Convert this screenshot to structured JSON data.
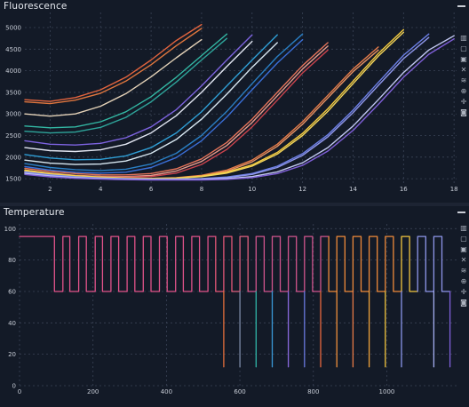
{
  "panels": {
    "fluorescence": {
      "title": "Fluorescence"
    },
    "temperature": {
      "title": "Temperature"
    }
  },
  "toolbar_icons": [
    "bar-chart-icon",
    "square-icon",
    "filled-square-icon",
    "crosshair-icon",
    "layers-icon",
    "zoom-icon",
    "pan-icon",
    "camera-icon"
  ],
  "chart_data": [
    {
      "type": "line",
      "title": "Fluorescence",
      "xlabel": "",
      "ylabel": "",
      "xlim": [
        1.0,
        18.1
      ],
      "ylim": [
        1400,
        5350
      ],
      "x_ticks": [
        2,
        4,
        6,
        8,
        10,
        12,
        14,
        16,
        18
      ],
      "y_ticks": [
        1500,
        2000,
        2500,
        3000,
        3500,
        4000,
        4500,
        5000
      ],
      "grid": true,
      "series": [
        {
          "color": "#e2643e",
          "x": [
            1,
            2,
            3,
            4,
            5,
            6,
            7,
            8
          ],
          "y": [
            3330,
            3290,
            3380,
            3560,
            3850,
            4250,
            4700,
            5070
          ]
        },
        {
          "color": "#e0763e",
          "x": [
            1,
            2,
            3,
            4,
            5,
            6,
            7,
            8
          ],
          "y": [
            3280,
            3240,
            3320,
            3480,
            3760,
            4140,
            4580,
            4980
          ]
        },
        {
          "color": "#e4d2b8",
          "x": [
            1,
            2,
            3,
            4,
            5,
            6,
            7,
            8
          ],
          "y": [
            3000,
            2950,
            3000,
            3180,
            3470,
            3860,
            4300,
            4720
          ]
        },
        {
          "color": "#33b8a4",
          "x": [
            1,
            2,
            3,
            4,
            5,
            6,
            7,
            8,
            9
          ],
          "y": [
            2720,
            2680,
            2700,
            2820,
            3050,
            3400,
            3850,
            4350,
            4850
          ]
        },
        {
          "color": "#2ea49a",
          "x": [
            1,
            2,
            3,
            4,
            5,
            6,
            7,
            8,
            9
          ],
          "y": [
            2600,
            2560,
            2580,
            2690,
            2920,
            3280,
            3740,
            4250,
            4750
          ]
        },
        {
          "color": "#7d63e0",
          "x": [
            1,
            2,
            3,
            4,
            5,
            6,
            7,
            8,
            9,
            10
          ],
          "y": [
            2380,
            2300,
            2280,
            2320,
            2450,
            2700,
            3100,
            3650,
            4250,
            4830
          ]
        },
        {
          "color": "#e2e6f2",
          "x": [
            1,
            2,
            3,
            4,
            5,
            6,
            7,
            8,
            9,
            10
          ],
          "y": [
            2220,
            2150,
            2130,
            2170,
            2300,
            2560,
            2960,
            3500,
            4100,
            4680
          ]
        },
        {
          "color": "#2f9fd6",
          "x": [
            1,
            2,
            3,
            4,
            5,
            6,
            7,
            8,
            9,
            10,
            11
          ],
          "y": [
            2060,
            1980,
            1940,
            1950,
            2030,
            2220,
            2560,
            3050,
            3650,
            4250,
            4830
          ]
        },
        {
          "color": "#d8e8f2",
          "x": [
            1,
            2,
            3,
            4,
            5,
            6,
            7,
            8,
            9,
            10,
            11
          ],
          "y": [
            1930,
            1860,
            1830,
            1840,
            1910,
            2090,
            2410,
            2880,
            3460,
            4080,
            4650
          ]
        },
        {
          "color": "#2a7fc4",
          "x": [
            1,
            2,
            3,
            4,
            5,
            6,
            7,
            8,
            9,
            10,
            11,
            12
          ],
          "y": [
            1850,
            1760,
            1710,
            1690,
            1720,
            1840,
            2090,
            2500,
            3060,
            3700,
            4330,
            4850
          ]
        },
        {
          "color": "#3a6fd8",
          "x": [
            1,
            2,
            3,
            4,
            5,
            6,
            7,
            8,
            9,
            10,
            11,
            12
          ],
          "y": [
            1780,
            1700,
            1650,
            1630,
            1650,
            1760,
            1990,
            2380,
            2930,
            3560,
            4180,
            4720
          ]
        },
        {
          "color": "#e5745a",
          "x": [
            1,
            2,
            3,
            4,
            5,
            6,
            7,
            8,
            9,
            10,
            11,
            12,
            13
          ],
          "y": [
            1740,
            1670,
            1620,
            1590,
            1590,
            1620,
            1730,
            1960,
            2340,
            2880,
            3500,
            4120,
            4650
          ]
        },
        {
          "color": "#e89a8a",
          "x": [
            1,
            2,
            3,
            4,
            5,
            6,
            7,
            8,
            9,
            10,
            11,
            12,
            13
          ],
          "y": [
            1700,
            1630,
            1580,
            1555,
            1550,
            1575,
            1680,
            1900,
            2270,
            2800,
            3420,
            4040,
            4570
          ]
        },
        {
          "color": "#c9434c",
          "x": [
            1,
            2,
            3,
            4,
            5,
            6,
            7,
            8,
            9,
            10,
            11,
            12,
            13
          ],
          "y": [
            1670,
            1610,
            1570,
            1545,
            1535,
            1550,
            1630,
            1830,
            2180,
            2700,
            3320,
            3950,
            4480
          ]
        },
        {
          "color": "#e67c4a",
          "x": [
            1,
            2,
            3,
            4,
            5,
            6,
            7,
            8,
            9,
            10,
            11,
            12,
            13,
            14,
            15
          ],
          "y": [
            1660,
            1600,
            1560,
            1530,
            1515,
            1510,
            1525,
            1580,
            1700,
            1930,
            2300,
            2820,
            3430,
            4040,
            4550
          ]
        },
        {
          "color": "#e89262",
          "x": [
            1,
            2,
            3,
            4,
            5,
            6,
            7,
            8,
            9,
            10,
            11,
            12,
            13,
            14,
            15
          ],
          "y": [
            1640,
            1585,
            1545,
            1520,
            1505,
            1500,
            1512,
            1560,
            1670,
            1890,
            2250,
            2760,
            3370,
            3980,
            4480
          ]
        },
        {
          "color": "#f5cc3e",
          "x": [
            1,
            2,
            3,
            4,
            5,
            6,
            7,
            8,
            9,
            10,
            11,
            12,
            13,
            14,
            15,
            16
          ],
          "y": [
            1700,
            1620,
            1570,
            1540,
            1520,
            1510,
            1520,
            1560,
            1650,
            1820,
            2110,
            2550,
            3120,
            3760,
            4400,
            4950
          ]
        },
        {
          "color": "#f3d55a",
          "x": [
            1,
            2,
            3,
            4,
            5,
            6,
            7,
            8,
            9,
            10,
            11,
            12,
            13,
            14,
            15,
            16
          ],
          "y": [
            1680,
            1605,
            1560,
            1530,
            1512,
            1505,
            1512,
            1548,
            1630,
            1790,
            2070,
            2500,
            3060,
            3700,
            4340,
            4890
          ]
        },
        {
          "color": "#6c7fe6",
          "x": [
            1,
            2,
            3,
            4,
            5,
            6,
            7,
            8,
            9,
            10,
            11,
            12,
            13,
            14,
            15,
            16,
            17
          ],
          "y": [
            1660,
            1590,
            1545,
            1518,
            1502,
            1495,
            1495,
            1505,
            1540,
            1620,
            1790,
            2080,
            2520,
            3090,
            3730,
            4360,
            4850
          ]
        },
        {
          "color": "#8e96ea",
          "x": [
            1,
            2,
            3,
            4,
            5,
            6,
            7,
            8,
            9,
            10,
            11,
            12,
            13,
            14,
            15,
            16,
            17
          ],
          "y": [
            1640,
            1575,
            1535,
            1510,
            1495,
            1488,
            1488,
            1496,
            1525,
            1600,
            1760,
            2040,
            2470,
            3030,
            3660,
            4280,
            4770
          ]
        },
        {
          "color": "#c2c8f2",
          "x": [
            1,
            2,
            3,
            4,
            5,
            6,
            7,
            8,
            9,
            10,
            11,
            12,
            13,
            14,
            15,
            16,
            17,
            18
          ],
          "y": [
            1620,
            1560,
            1522,
            1500,
            1486,
            1480,
            1478,
            1482,
            1500,
            1550,
            1660,
            1870,
            2220,
            2720,
            3330,
            3960,
            4480,
            4810
          ]
        },
        {
          "color": "#7f5fd8",
          "x": [
            1,
            2,
            3,
            4,
            5,
            6,
            7,
            8,
            9,
            10,
            11,
            12,
            13,
            14,
            15,
            16,
            17,
            18
          ],
          "y": [
            1600,
            1545,
            1510,
            1490,
            1478,
            1472,
            1470,
            1472,
            1485,
            1525,
            1620,
            1810,
            2140,
            2620,
            3220,
            3850,
            4380,
            4740
          ]
        }
      ]
    },
    {
      "type": "line",
      "title": "Temperature",
      "xlabel": "",
      "ylabel": "",
      "xlim": [
        0,
        1190
      ],
      "ylim": [
        0,
        103
      ],
      "x_ticks": [
        0,
        200,
        400,
        600,
        800,
        1000
      ],
      "y_ticks": [
        0,
        20,
        40,
        60,
        80,
        100
      ],
      "grid": true,
      "series": [
        {
          "color": "#e1538a",
          "x": [
            0,
            95,
            95,
            118,
            118,
            137,
            137,
            161,
            161,
            182,
            182,
            206,
            206,
            226,
            226,
            249,
            249,
            270,
            270,
            293,
            293,
            314,
            314,
            337,
            337,
            358,
            358,
            381,
            381,
            402,
            402,
            425,
            425,
            446,
            446,
            469,
            469,
            490,
            490,
            513,
            513,
            534
          ],
          "y": [
            95,
            95,
            60,
            60,
            95,
            95,
            60,
            60,
            95,
            95,
            60,
            60,
            95,
            95,
            60,
            60,
            95,
            95,
            60,
            60,
            95,
            95,
            60,
            60,
            95,
            95,
            60,
            60,
            95,
            95,
            60,
            60,
            95,
            95,
            60,
            60,
            95,
            95,
            60,
            60,
            95,
            95
          ]
        },
        {
          "color": "#e65878",
          "x": [
            534,
            534,
            556,
            556,
            578,
            578
          ],
          "y": [
            95,
            60,
            60,
            95,
            95,
            60
          ]
        },
        {
          "color": "#e8703c",
          "x": [
            556,
            556
          ],
          "y": [
            60,
            12
          ]
        },
        {
          "color": "#e06080",
          "x": [
            578,
            600,
            600,
            622,
            622
          ],
          "y": [
            60,
            60,
            95,
            95,
            60
          ]
        },
        {
          "color": "#7c8aa8",
          "x": [
            600,
            600
          ],
          "y": [
            60,
            12
          ]
        },
        {
          "color": "#d2558e",
          "x": [
            622,
            644,
            644,
            666,
            666,
            688,
            688,
            710,
            710,
            732,
            732,
            754,
            754,
            776,
            776,
            798,
            798,
            820,
            820,
            842
          ],
          "y": [
            60,
            60,
            95,
            95,
            60,
            60,
            95,
            95,
            60,
            60,
            95,
            95,
            60,
            60,
            95,
            95,
            60,
            60,
            95,
            95
          ]
        },
        {
          "color": "#2fb7a8",
          "x": [
            644,
            644
          ],
          "y": [
            60,
            12
          ]
        },
        {
          "color": "#3b9ad8",
          "x": [
            688,
            688
          ],
          "y": [
            60,
            12
          ]
        },
        {
          "color": "#8a6ae0",
          "x": [
            732,
            732
          ],
          "y": [
            60,
            12
          ]
        },
        {
          "color": "#6a7ae0",
          "x": [
            776,
            776
          ],
          "y": [
            60,
            12
          ]
        },
        {
          "color": "#f08a3a",
          "x": [
            842,
            842,
            864,
            864,
            886,
            886,
            908,
            908,
            930,
            930,
            952,
            952,
            974,
            974,
            996,
            996,
            1018,
            1018,
            1040
          ],
          "y": [
            95,
            60,
            60,
            95,
            95,
            60,
            60,
            95,
            95,
            60,
            60,
            95,
            95,
            60,
            60,
            95,
            95,
            60,
            60
          ]
        },
        {
          "color": "#e8683e",
          "x": [
            820,
            820
          ],
          "y": [
            60,
            12
          ]
        },
        {
          "color": "#f0903c",
          "x": [
            864,
            864
          ],
          "y": [
            60,
            12
          ]
        },
        {
          "color": "#e87a46",
          "x": [
            908,
            908
          ],
          "y": [
            60,
            12
          ]
        },
        {
          "color": "#f0a23a",
          "x": [
            952,
            952
          ],
          "y": [
            60,
            12
          ]
        },
        {
          "color": "#f3c63e",
          "x": [
            996,
            996
          ],
          "y": [
            60,
            12
          ]
        },
        {
          "color": "#f3c63e",
          "x": [
            1040,
            1040,
            1062,
            1062,
            1084
          ],
          "y": [
            60,
            95,
            95,
            60,
            60
          ]
        },
        {
          "color": "#8a96ea",
          "x": [
            1040,
            1040
          ],
          "y": [
            60,
            12
          ]
        },
        {
          "color": "#8e96ea",
          "x": [
            1084,
            1084,
            1106,
            1106,
            1128,
            1128,
            1150,
            1150,
            1172
          ],
          "y": [
            60,
            95,
            95,
            60,
            60,
            95,
            95,
            60,
            60
          ]
        },
        {
          "color": "#a4aef0",
          "x": [
            1128,
            1128
          ],
          "y": [
            60,
            12
          ]
        },
        {
          "color": "#7f5fd8",
          "x": [
            1172,
            1172
          ],
          "y": [
            60,
            12
          ]
        }
      ]
    }
  ]
}
